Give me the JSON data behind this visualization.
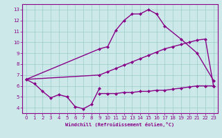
{
  "xlabel": "Windchill (Refroidissement éolien,°C)",
  "background_color": "#cce8e8",
  "line_color": "#880088",
  "xlim": [
    -0.5,
    23.5
  ],
  "ylim": [
    3.5,
    13.5
  ],
  "xticks": [
    0,
    1,
    2,
    3,
    4,
    5,
    6,
    7,
    8,
    9,
    10,
    11,
    12,
    13,
    14,
    15,
    16,
    17,
    18,
    19,
    20,
    21,
    22,
    23
  ],
  "yticks": [
    4,
    5,
    6,
    7,
    8,
    9,
    10,
    11,
    12,
    13
  ],
  "line1_x": [
    0,
    1,
    2,
    3,
    4,
    5,
    6,
    7,
    8,
    9
  ],
  "line1_y": [
    6.6,
    6.2,
    5.5,
    4.9,
    5.2,
    5.0,
    4.1,
    3.9,
    4.3,
    5.8
  ],
  "line2_x": [
    0,
    9,
    10,
    11,
    12,
    13,
    14,
    15,
    16,
    17,
    19,
    21,
    23
  ],
  "line2_y": [
    6.6,
    9.4,
    9.6,
    11.1,
    12.0,
    12.6,
    12.6,
    13.0,
    12.6,
    11.5,
    10.3,
    9.0,
    6.5
  ],
  "line3_x": [
    0,
    9,
    10,
    11,
    12,
    13,
    14,
    15,
    16,
    17,
    18,
    19,
    20,
    21,
    22,
    23
  ],
  "line3_y": [
    6.6,
    7.0,
    7.3,
    7.6,
    7.9,
    8.2,
    8.5,
    8.8,
    9.1,
    9.4,
    9.6,
    9.8,
    10.0,
    10.2,
    10.3,
    6.0
  ],
  "line4_x": [
    9,
    10,
    11,
    12,
    13,
    14,
    15,
    16,
    17,
    18,
    19,
    20,
    21,
    22,
    23
  ],
  "line4_y": [
    5.3,
    5.3,
    5.3,
    5.4,
    5.4,
    5.5,
    5.5,
    5.6,
    5.6,
    5.7,
    5.8,
    5.9,
    6.0,
    6.0,
    6.0
  ],
  "grid_color": "#99cccc",
  "marker": "D",
  "marker_size": 2.5,
  "linewidth": 1.0
}
